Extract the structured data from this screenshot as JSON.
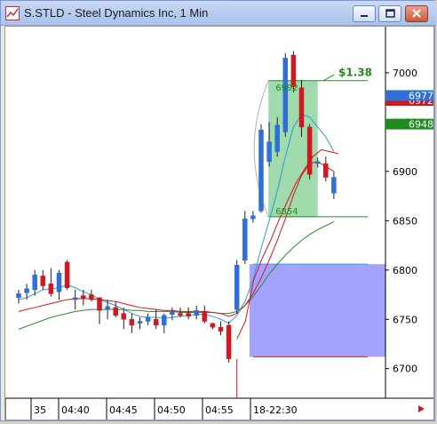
{
  "window": {
    "title": "S.STLD - Steel Dynamics Inc, 1 Min",
    "minimize_icon": "minimize-icon",
    "restore_icon": "restore-icon",
    "close_icon": "close-icon"
  },
  "chart_data": {
    "type": "candlestick",
    "symbol": "S.STLD",
    "y_ticks": [
      6700,
      6750,
      6800,
      6850,
      6900,
      6950,
      7000
    ],
    "x_tick_labels": [
      "35",
      "04:40",
      "04:45",
      "04:50",
      "04:55",
      "18-22:30"
    ],
    "ylim": [
      6670,
      7045
    ],
    "candles": [
      {
        "o": 6772,
        "h": 6780,
        "l": 6766,
        "c": 6776
      },
      {
        "o": 6777,
        "h": 6786,
        "l": 6770,
        "c": 6781
      },
      {
        "o": 6780,
        "h": 6800,
        "l": 6774,
        "c": 6795
      },
      {
        "o": 6794,
        "h": 6800,
        "l": 6780,
        "c": 6784
      },
      {
        "o": 6786,
        "h": 6802,
        "l": 6773,
        "c": 6776
      },
      {
        "o": 6778,
        "h": 6800,
        "l": 6770,
        "c": 6797
      },
      {
        "o": 6808,
        "h": 6810,
        "l": 6780,
        "c": 6782
      },
      {
        "o": 6770,
        "h": 6780,
        "l": 6760,
        "c": 6772
      },
      {
        "o": 6774,
        "h": 6780,
        "l": 6764,
        "c": 6771
      },
      {
        "o": 6775,
        "h": 6780,
        "l": 6768,
        "c": 6770
      },
      {
        "o": 6772,
        "h": 6772,
        "l": 6745,
        "c": 6759
      },
      {
        "o": 6760,
        "h": 6770,
        "l": 6750,
        "c": 6763
      },
      {
        "o": 6762,
        "h": 6768,
        "l": 6752,
        "c": 6754
      },
      {
        "o": 6756,
        "h": 6762,
        "l": 6740,
        "c": 6750
      },
      {
        "o": 6750,
        "h": 6756,
        "l": 6736,
        "c": 6744
      },
      {
        "o": 6746,
        "h": 6752,
        "l": 6740,
        "c": 6748
      },
      {
        "o": 6748,
        "h": 6756,
        "l": 6744,
        "c": 6752
      },
      {
        "o": 6750,
        "h": 6760,
        "l": 6740,
        "c": 6744
      },
      {
        "o": 6744,
        "h": 6756,
        "l": 6736,
        "c": 6754
      },
      {
        "o": 6755,
        "h": 6762,
        "l": 6749,
        "c": 6758
      },
      {
        "o": 6756,
        "h": 6762,
        "l": 6752,
        "c": 6754
      },
      {
        "o": 6756,
        "h": 6762,
        "l": 6750,
        "c": 6753
      },
      {
        "o": 6754,
        "h": 6764,
        "l": 6750,
        "c": 6759
      },
      {
        "o": 6758,
        "h": 6764,
        "l": 6746,
        "c": 6748
      },
      {
        "o": 6746,
        "h": 6746,
        "l": 6740,
        "c": 6742
      },
      {
        "o": 6742,
        "h": 6748,
        "l": 6734,
        "c": 6738
      },
      {
        "o": 6744,
        "h": 6748,
        "l": 6706,
        "c": 6710
      },
      {
        "o": 6760,
        "h": 6810,
        "l": 6756,
        "c": 6805
      },
      {
        "o": 6810,
        "h": 6860,
        "l": 6806,
        "c": 6852
      },
      {
        "o": 6852,
        "h": 6860,
        "l": 6848,
        "c": 6855
      },
      {
        "o": 6860,
        "h": 6948,
        "l": 6858,
        "c": 6942
      },
      {
        "o": 6910,
        "h": 6950,
        "l": 6905,
        "c": 6930
      },
      {
        "o": 6920,
        "h": 6955,
        "l": 6915,
        "c": 6947
      },
      {
        "o": 6940,
        "h": 7020,
        "l": 6935,
        "c": 7015
      },
      {
        "o": 7018,
        "h": 7022,
        "l": 6980,
        "c": 6986
      },
      {
        "o": 6985,
        "h": 6993,
        "l": 6935,
        "c": 6945
      },
      {
        "o": 6945,
        "h": 6948,
        "l": 6892,
        "c": 6897
      },
      {
        "o": 6908,
        "h": 6914,
        "l": 6904,
        "c": 6910
      },
      {
        "o": 6908,
        "h": 6915,
        "l": 6890,
        "c": 6894
      },
      {
        "o": 6878,
        "h": 6900,
        "l": 6872,
        "c": 6894
      }
    ],
    "ma_fast": [
      6770,
      6772,
      6776,
      6780,
      6781,
      6782,
      6785,
      6782,
      6778,
      6775,
      6770,
      6767,
      6764,
      6760,
      6756,
      6753,
      6752,
      6752,
      6751,
      6752,
      6753,
      6754,
      6755,
      6755,
      6753,
      6750,
      6746,
      6754,
      6768,
      6790,
      6822,
      6850,
      6880,
      6915,
      6945,
      6958,
      6955,
      6945,
      6935,
      6920
    ],
    "ma_mid": [
      6758,
      6760,
      6762,
      6764,
      6766,
      6768,
      6770,
      6771,
      6771,
      6771,
      6770,
      6769,
      6768,
      6766,
      6764,
      6762,
      6761,
      6760,
      6759,
      6759,
      6758,
      6758,
      6758,
      6758,
      6757,
      6756,
      6753,
      6756,
      6764,
      6776,
      6792,
      6810,
      6830,
      6852,
      6876,
      6896,
      6908,
      6910,
      6905,
      6900
    ],
    "ma_slow": [
      6740,
      6743,
      6746,
      6749,
      6752,
      6754,
      6756,
      6758,
      6759,
      6760,
      6760,
      6760,
      6760,
      6760,
      6759,
      6759,
      6758,
      6758,
      6758,
      6758,
      6757,
      6757,
      6757,
      6757,
      6757,
      6756,
      6756,
      6758,
      6764,
      6773,
      6784,
      6796,
      6806,
      6815,
      6823,
      6830,
      6836,
      6841,
      6845,
      6849
    ],
    "trend_red": [
      6730,
      6748,
      6790,
      6812,
      6830,
      6851,
      6870,
      6888,
      6902,
      6915,
      6922,
      6920,
      6918
    ],
    "price_labels": {
      "current_blue": "6977",
      "current_red": "6972",
      "ma_green": "6948"
    },
    "annotations": {
      "profit_label": "$1.38",
      "range_high": "6992",
      "range_low": "6854"
    },
    "colors": {
      "up_candle": "#2f6fd6",
      "down_candle": "#d0181f",
      "ma_fast": "#2d9bd8",
      "ma_mid": "#d0181f",
      "ma_slow": "#2a8a2a",
      "profit_zone": "#8fd39f",
      "blue_zone": "#9999ff",
      "profit_text": "#1f8a1f"
    }
  }
}
